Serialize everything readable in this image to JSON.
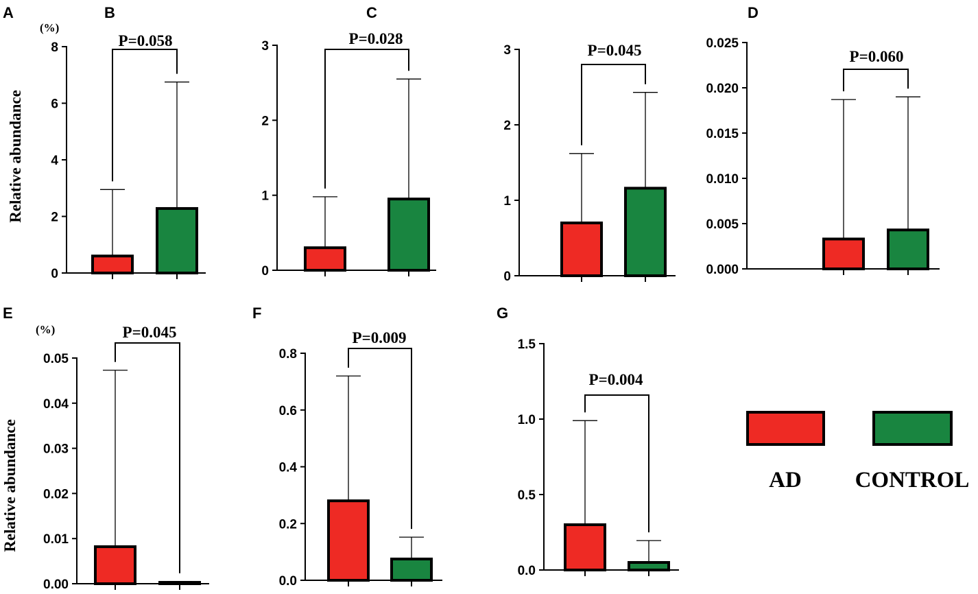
{
  "colors": {
    "ad": "#ee2a24",
    "control": "#198540",
    "stroke": "#000000"
  },
  "legend": {
    "items": [
      {
        "label": "AD",
        "color": "#ee2a24"
      },
      {
        "label": "CONTROL",
        "color": "#198540"
      }
    ]
  },
  "chart_data": [
    {
      "type": "bar",
      "panel": "A",
      "ylabel": "Relative abundance",
      "unit": "(%)",
      "categories": [
        "AD",
        "CONTROL"
      ],
      "ylim": [
        0,
        8
      ],
      "ticks": [
        0,
        2,
        4,
        6,
        8
      ],
      "tick_labels": [
        "0",
        "2",
        "4",
        "6",
        "8"
      ],
      "values": [
        0.6,
        2.28
      ],
      "error_upper": [
        2.95,
        6.75
      ],
      "p_value": "P=0.058"
    },
    {
      "type": "bar",
      "panel": "B",
      "ylabel": "",
      "unit": "",
      "categories": [
        "AD",
        "CONTROL"
      ],
      "ylim": [
        0,
        3
      ],
      "ticks": [
        0,
        1,
        2,
        3
      ],
      "tick_labels": [
        "0",
        "1",
        "2",
        "3"
      ],
      "values": [
        0.3,
        0.95
      ],
      "error_upper": [
        0.98,
        2.55
      ],
      "p_value": "P=0.028"
    },
    {
      "type": "bar",
      "panel": "C",
      "ylabel": "",
      "unit": "",
      "categories": [
        "AD",
        "CONTROL"
      ],
      "ylim": [
        0,
        3
      ],
      "ticks": [
        0,
        1,
        2,
        3
      ],
      "tick_labels": [
        "0",
        "1",
        "2",
        "3"
      ],
      "values": [
        0.7,
        1.16
      ],
      "error_upper": [
        1.62,
        2.43
      ],
      "p_value": "P=0.045"
    },
    {
      "type": "bar",
      "panel": "D",
      "ylabel": "",
      "unit": "",
      "categories": [
        "AD",
        "CONTROL"
      ],
      "ylim": [
        0,
        0.025
      ],
      "ticks": [
        0,
        0.005,
        0.01,
        0.015,
        0.02,
        0.025
      ],
      "tick_labels": [
        "0.000",
        "0.005",
        "0.010",
        "0.015",
        "0.020",
        "0.025"
      ],
      "values": [
        0.0033,
        0.0043
      ],
      "error_upper": [
        0.0187,
        0.019
      ],
      "p_value": "P=0.060"
    },
    {
      "type": "bar",
      "panel": "E",
      "ylabel": "Relative abundance",
      "unit": "(%)",
      "categories": [
        "AD",
        "CONTROL"
      ],
      "ylim": [
        0,
        0.05
      ],
      "ticks": [
        0,
        0.01,
        0.02,
        0.03,
        0.04,
        0.05
      ],
      "tick_labels": [
        "0.00",
        "0.01",
        "0.02",
        "0.03",
        "0.04",
        "0.05"
      ],
      "values": [
        0.0082,
        0.0003
      ],
      "error_upper": [
        0.0473,
        0.0005
      ],
      "p_value": "P=0.045"
    },
    {
      "type": "bar",
      "panel": "F",
      "ylabel": "",
      "unit": "",
      "categories": [
        "AD",
        "CONTROL"
      ],
      "ylim": [
        0,
        0.8
      ],
      "ticks": [
        0,
        0.2,
        0.4,
        0.6,
        0.8
      ],
      "tick_labels": [
        "0.0",
        "0.2",
        "0.4",
        "0.6",
        "0.8"
      ],
      "values": [
        0.28,
        0.075
      ],
      "error_upper": [
        0.72,
        0.152
      ],
      "p_value": "P=0.009"
    },
    {
      "type": "bar",
      "panel": "G",
      "ylabel": "",
      "unit": "",
      "categories": [
        "AD",
        "CONTROL"
      ],
      "ylim": [
        0,
        1.5
      ],
      "ticks": [
        0,
        0.5,
        1,
        1.5
      ],
      "tick_labels": [
        "0.0",
        "0.5",
        "1.0",
        "1.5"
      ],
      "values": [
        0.3,
        0.05
      ],
      "error_upper": [
        0.99,
        0.195
      ],
      "p_value": "P=0.004"
    }
  ]
}
